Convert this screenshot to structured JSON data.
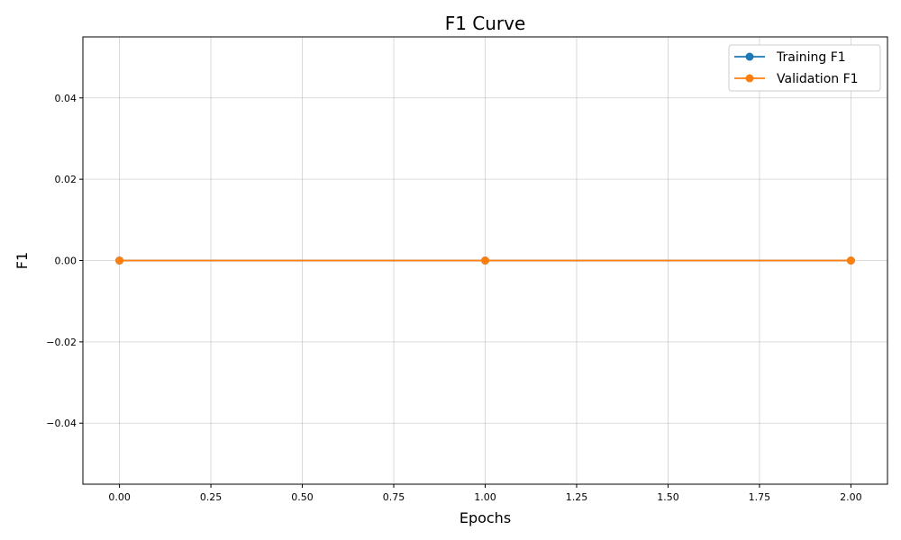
{
  "chart_data": {
    "type": "line",
    "title": "F1 Curve",
    "xlabel": "Epochs",
    "ylabel": "F1",
    "x": [
      0,
      1,
      2
    ],
    "xlim": [
      -0.1,
      2.1
    ],
    "ylim": [
      -0.055,
      0.055
    ],
    "xticks": [
      0.0,
      0.25,
      0.5,
      0.75,
      1.0,
      1.25,
      1.5,
      1.75,
      2.0
    ],
    "xtick_labels": [
      "0.00",
      "0.25",
      "0.50",
      "0.75",
      "1.00",
      "1.25",
      "1.50",
      "1.75",
      "2.00"
    ],
    "yticks": [
      -0.04,
      -0.02,
      0.0,
      0.02,
      0.04
    ],
    "ytick_labels": [
      "−0.04",
      "−0.02",
      "0.00",
      "0.02",
      "0.04"
    ],
    "grid": true,
    "legend_position": "top-right",
    "series": [
      {
        "name": "Training F1",
        "values": [
          0,
          0,
          0
        ],
        "color": "#1f77b4"
      },
      {
        "name": "Validation F1",
        "values": [
          0,
          0,
          0
        ],
        "color": "#ff7f0e"
      }
    ]
  }
}
